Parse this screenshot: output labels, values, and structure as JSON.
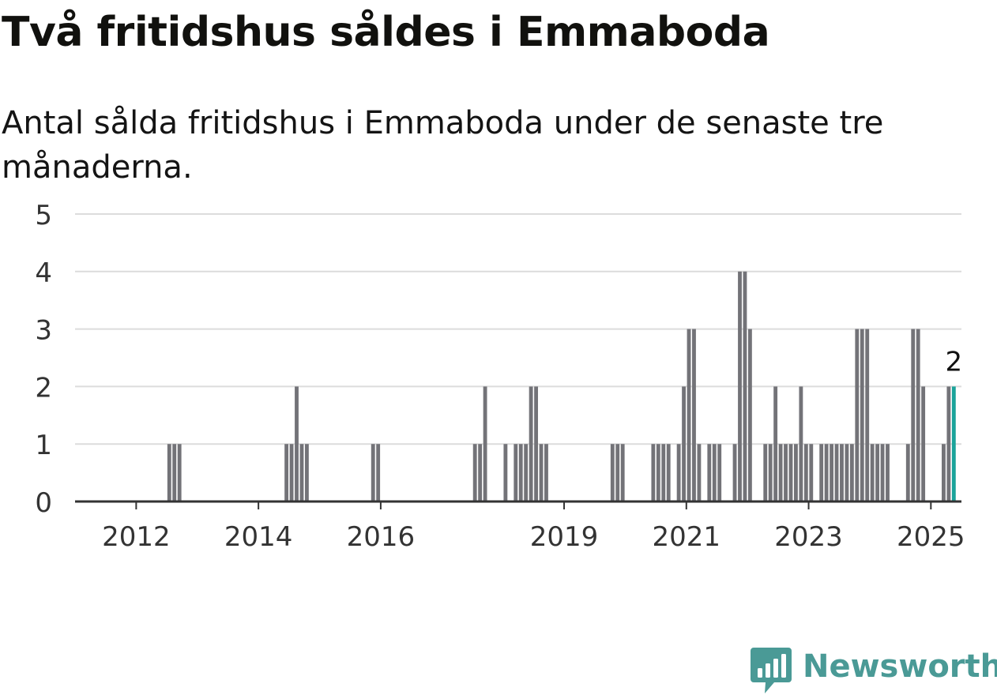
{
  "header": {
    "title": "Två fritidshus såldes i Emmaboda",
    "subtitle": "Antal sålda fritidshus i Emmaboda under de senaste tre månaderna."
  },
  "brand": {
    "name": "Newsworthy",
    "color": "#4a9a96",
    "icon": "bar-chart-speech-bubble-icon"
  },
  "colors": {
    "bar": "#737378",
    "highlight": "#1aa39a",
    "grid": "#dcdcdc",
    "axis": "#333333"
  },
  "chart_data": {
    "type": "bar",
    "title": "Två fritidshus såldes i Emmaboda",
    "subtitle": "Antal sålda fritidshus i Emmaboda under de senaste tre månaderna.",
    "xlabel": "",
    "ylabel": "",
    "ylim": [
      0,
      5
    ],
    "yticks": [
      "0",
      "1",
      "2",
      "3",
      "4",
      "5"
    ],
    "xticks": [
      "2012",
      "2014",
      "2016",
      "2019",
      "2021",
      "2023",
      "2025"
    ],
    "x_start": "2011-01",
    "x_end": "2025-07",
    "grid": true,
    "legend": "none",
    "highlight_label": "2",
    "series": [
      {
        "months": [
          "2012-07",
          "2012-08",
          "2012-09",
          "2014-06",
          "2014-07",
          "2014-08",
          "2014-09",
          "2014-10",
          "2015-11",
          "2015-12",
          "2017-07",
          "2017-08",
          "2017-09",
          "2018-01",
          "2018-03",
          "2018-04",
          "2018-05",
          "2018-06",
          "2018-07",
          "2018-08",
          "2018-09",
          "2019-10",
          "2019-11",
          "2019-12",
          "2020-06",
          "2020-07",
          "2020-08",
          "2020-09",
          "2020-11",
          "2020-12",
          "2021-01",
          "2021-02",
          "2021-03",
          "2021-05",
          "2021-06",
          "2021-07",
          "2021-10",
          "2021-11",
          "2021-12",
          "2022-01",
          "2022-04",
          "2022-05",
          "2022-06",
          "2022-07",
          "2022-08",
          "2022-09",
          "2022-10",
          "2022-11",
          "2022-12",
          "2023-01",
          "2023-03",
          "2023-04",
          "2023-05",
          "2023-06",
          "2023-07",
          "2023-08",
          "2023-09",
          "2023-10",
          "2023-11",
          "2023-12",
          "2024-01",
          "2024-02",
          "2024-03",
          "2024-04",
          "2024-08",
          "2024-09",
          "2024-10",
          "2024-11",
          "2025-03",
          "2025-04",
          "2025-05"
        ],
        "values": [
          1,
          1,
          1,
          1,
          1,
          2,
          1,
          1,
          1,
          1,
          1,
          1,
          2,
          1,
          1,
          1,
          1,
          2,
          2,
          1,
          1,
          1,
          1,
          1,
          1,
          1,
          1,
          1,
          1,
          2,
          3,
          3,
          1,
          1,
          1,
          1,
          1,
          4,
          4,
          3,
          1,
          1,
          2,
          1,
          1,
          1,
          1,
          2,
          1,
          1,
          1,
          1,
          1,
          1,
          1,
          1,
          1,
          3,
          3,
          3,
          1,
          1,
          1,
          1,
          1,
          3,
          3,
          2,
          1,
          2,
          2
        ]
      }
    ]
  }
}
